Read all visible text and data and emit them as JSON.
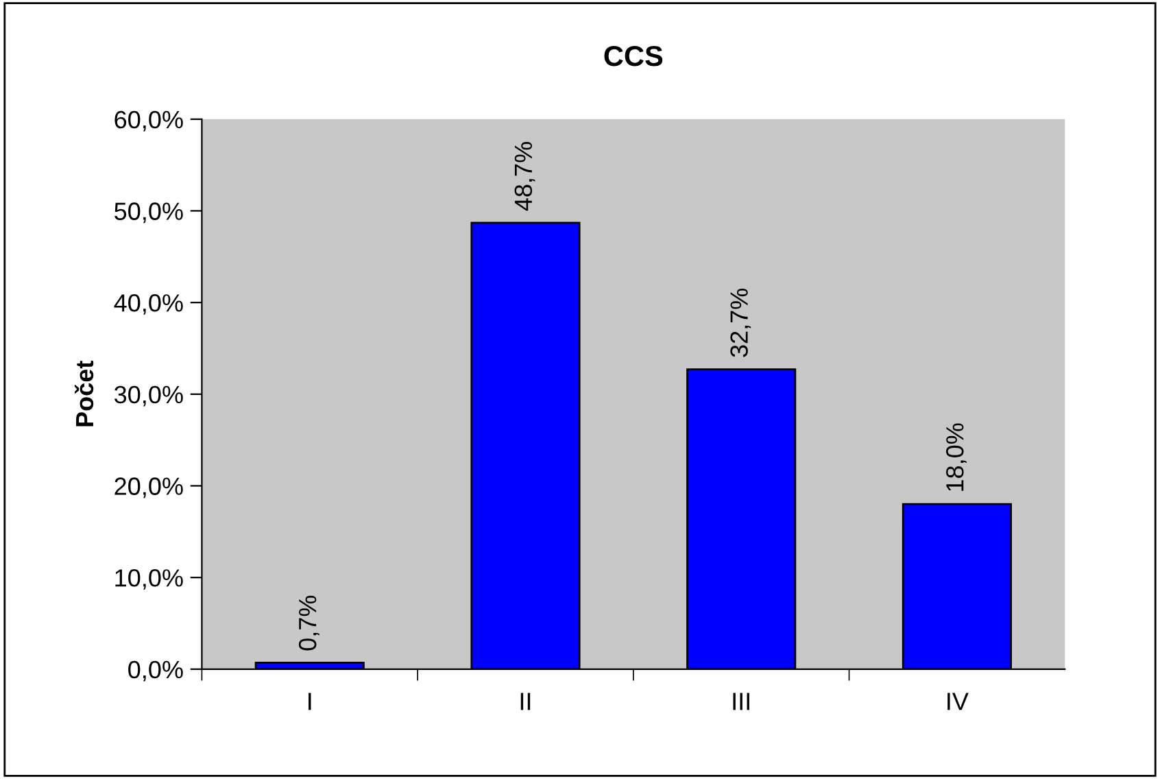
{
  "chart_data": {
    "type": "bar",
    "title": "CCS",
    "ylabel": "Počet",
    "categories": [
      "I",
      "II",
      "III",
      "IV"
    ],
    "values": [
      0.7,
      48.7,
      32.7,
      18.0
    ],
    "value_labels": [
      "0,7%",
      "48,7%",
      "32,7%",
      "18,0%"
    ],
    "color": "#0000ff",
    "ylim": [
      0,
      60
    ],
    "yticks": [
      {
        "value": 0,
        "label": "0,0%"
      },
      {
        "value": 10,
        "label": "10,0%"
      },
      {
        "value": 20,
        "label": "20,0%"
      },
      {
        "value": 30,
        "label": "30,0%"
      },
      {
        "value": 40,
        "label": "40,0%"
      },
      {
        "value": 50,
        "label": "50,0%"
      },
      {
        "value": 60,
        "label": "60,0%"
      }
    ],
    "grid": false,
    "legend": false
  }
}
